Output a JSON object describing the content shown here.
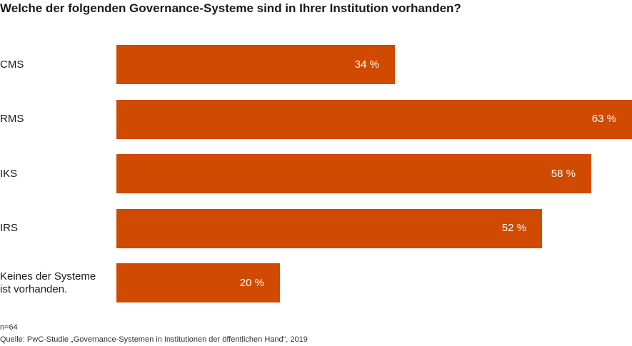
{
  "title": "Welche der folgenden Governance-Systeme sind in Ihrer Institution vorhanden?",
  "colors": {
    "bar": "#d04a02",
    "value_text": "#ffffff"
  },
  "chart_data": {
    "type": "bar",
    "orientation": "horizontal",
    "categories": [
      "CMS",
      "RMS",
      "IKS",
      "IRS",
      "Keines der Systeme\nist vorhanden."
    ],
    "values": [
      34,
      63,
      58,
      52,
      20
    ],
    "value_labels": [
      "34 %",
      "63 %",
      "58 %",
      "52 %",
      "20 %"
    ],
    "unit": "%",
    "xlim": [
      0,
      63
    ],
    "grid": false,
    "legend": "none"
  },
  "footnote": {
    "n": "n=64",
    "source": "Quelle: PwC-Studie „Governance-Systemen in Institutionen der öffentlichen Hand“, 2019"
  }
}
